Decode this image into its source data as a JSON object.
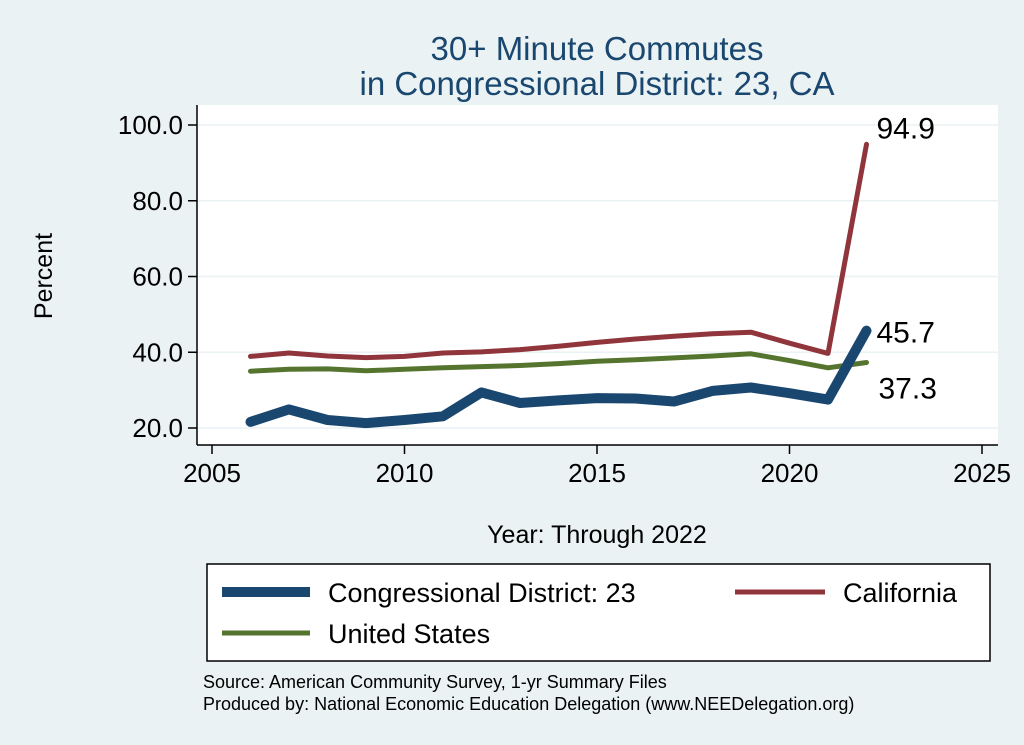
{
  "chart_data": {
    "type": "line",
    "title": [
      "30+ Minute Commutes",
      "in Congressional District:  23, CA"
    ],
    "xlabel": "Year: Through 2022",
    "ylabel": "Percent",
    "xlim": [
      2005,
      2025
    ],
    "ylim": [
      17,
      103
    ],
    "xticks": [
      2005,
      2010,
      2015,
      2020,
      2025
    ],
    "yticks": [
      20,
      40,
      60,
      80,
      100
    ],
    "ytick_labels": [
      "20.0",
      "40.0",
      "60.0",
      "80.0",
      "100.0"
    ],
    "grid": true,
    "legend_position": "bottom",
    "series": [
      {
        "name": "Congressional District:  23",
        "color": "#1a476f",
        "width": 10,
        "end_label": "45.7",
        "x": [
          2006,
          2007,
          2008,
          2009,
          2010,
          2011,
          2012,
          2013,
          2014,
          2015,
          2016,
          2017,
          2018,
          2019,
          2020,
          2021,
          2022
        ],
        "y": [
          21.6,
          24.9,
          22.1,
          21.3,
          22.1,
          23.1,
          29.4,
          26.6,
          27.3,
          27.9,
          27.8,
          27.0,
          29.8,
          30.7,
          29.2,
          27.5,
          45.7
        ]
      },
      {
        "name": "California",
        "color": "#90353b",
        "width": 5,
        "end_label": "94.9",
        "x": [
          2006,
          2007,
          2008,
          2009,
          2010,
          2011,
          2012,
          2013,
          2014,
          2015,
          2016,
          2017,
          2018,
          2019,
          2020,
          2021,
          2022
        ],
        "y": [
          38.9,
          39.8,
          39.0,
          38.6,
          38.9,
          39.8,
          40.1,
          40.7,
          41.6,
          42.6,
          43.5,
          44.2,
          44.9,
          45.3,
          42.4,
          39.7,
          94.9
        ]
      },
      {
        "name": "United States",
        "color": "#55752f",
        "width": 5,
        "end_label": "37.3",
        "x": [
          2006,
          2007,
          2008,
          2009,
          2010,
          2011,
          2012,
          2013,
          2014,
          2015,
          2016,
          2017,
          2018,
          2019,
          2020,
          2021,
          2022
        ],
        "y": [
          35.0,
          35.5,
          35.6,
          35.1,
          35.5,
          35.9,
          36.2,
          36.5,
          37.0,
          37.6,
          38.0,
          38.5,
          39.0,
          39.6,
          37.8,
          35.9,
          37.3
        ]
      }
    ]
  },
  "notes": {
    "source": "Source: American Community Survey, 1-yr Summary Files",
    "produced_by": "Produced by: National Economic Education Delegation (www.NEEDelegation.org)"
  }
}
